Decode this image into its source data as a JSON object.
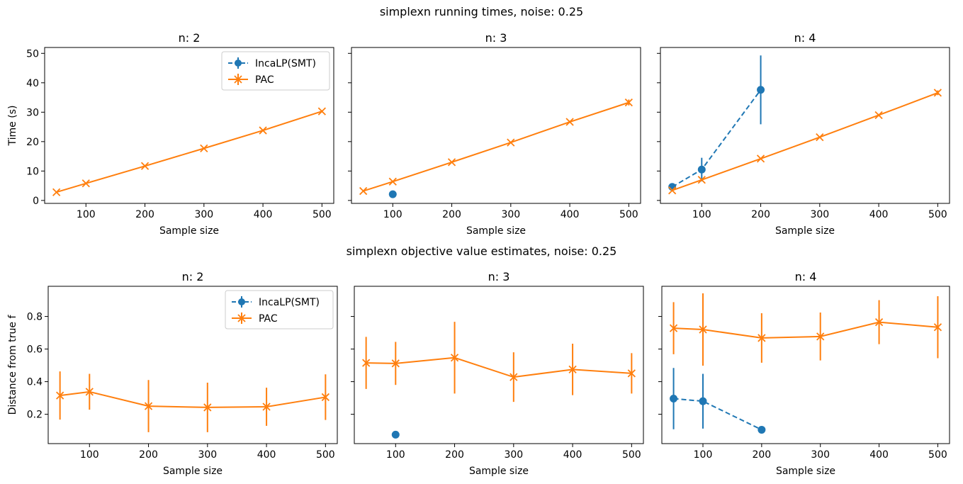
{
  "colors": {
    "incalp": "#1f77b4",
    "pac": "#ff7f0e",
    "axis": "#000000"
  },
  "rows": [
    {
      "suptitle": "simplexn running times, noise: 0.25",
      "ylabel": "Time (s)"
    },
    {
      "suptitle": "simplexn objective value estimates, noise: 0.25",
      "ylabel": "Distance from true f"
    }
  ],
  "legend": {
    "entries": [
      "IncaLP(SMT)",
      "PAC"
    ],
    "placement": "upper right",
    "panel_index": 0
  },
  "chart_data": [
    {
      "type": "line",
      "title": "n: 2",
      "xlabel": "Sample size",
      "ylabel": "Time (s)",
      "xlim": [
        30,
        520
      ],
      "ylim": [
        -1,
        52
      ],
      "xticks": [
        100,
        200,
        300,
        400,
        500
      ],
      "yticks": [
        0,
        10,
        20,
        30,
        40,
        50
      ],
      "series": [
        {
          "name": "IncaLP(SMT)",
          "style": "dashed-circle",
          "x": [],
          "y": [],
          "err": []
        },
        {
          "name": "PAC",
          "style": "solid-x",
          "x": [
            50,
            100,
            200,
            300,
            400,
            500
          ],
          "y": [
            2.8,
            5.8,
            11.7,
            17.7,
            23.8,
            30.3
          ],
          "err": [
            0.2,
            0.2,
            0.3,
            0.3,
            0.3,
            0.4
          ]
        }
      ]
    },
    {
      "type": "line",
      "title": "n: 3",
      "xlabel": "Sample size",
      "ylabel": "",
      "xlim": [
        30,
        520
      ],
      "ylim": [
        -1,
        52
      ],
      "xticks": [
        100,
        200,
        300,
        400,
        500
      ],
      "yticks": [
        0,
        10,
        20,
        30,
        40,
        50
      ],
      "series": [
        {
          "name": "IncaLP(SMT)",
          "style": "dashed-circle",
          "x": [
            100
          ],
          "y": [
            2.1
          ],
          "err": [
            0.2
          ]
        },
        {
          "name": "PAC",
          "style": "solid-x",
          "x": [
            50,
            100,
            200,
            300,
            400,
            500
          ],
          "y": [
            3.2,
            6.4,
            13.0,
            19.7,
            26.7,
            33.3
          ],
          "err": [
            0.2,
            0.2,
            0.3,
            0.3,
            0.4,
            1.0
          ]
        }
      ]
    },
    {
      "type": "line",
      "title": "n: 4",
      "xlabel": "Sample size",
      "ylabel": "",
      "xlim": [
        30,
        520
      ],
      "ylim": [
        -1,
        52
      ],
      "xticks": [
        100,
        200,
        300,
        400,
        500
      ],
      "yticks": [
        0,
        10,
        20,
        30,
        40,
        50
      ],
      "series": [
        {
          "name": "IncaLP(SMT)",
          "style": "dashed-circle",
          "x": [
            50,
            100,
            200
          ],
          "y": [
            4.6,
            10.5,
            37.6
          ],
          "err": [
            1.0,
            4.0,
            11.7
          ]
        },
        {
          "name": "PAC",
          "style": "solid-x",
          "x": [
            50,
            100,
            200,
            300,
            400,
            500
          ],
          "y": [
            3.4,
            7.0,
            14.2,
            21.5,
            29.0,
            36.6
          ],
          "err": [
            0.2,
            0.2,
            0.3,
            0.3,
            0.4,
            0.8
          ]
        }
      ]
    },
    {
      "type": "line",
      "title": "n: 2",
      "xlabel": "Sample size",
      "ylabel": "Distance from true f",
      "xlim": [
        30,
        520
      ],
      "ylim": [
        0.02,
        0.985
      ],
      "xticks": [
        100,
        200,
        300,
        400,
        500
      ],
      "yticks": [
        0.2,
        0.4,
        0.6,
        0.8
      ],
      "series": [
        {
          "name": "IncaLP(SMT)",
          "style": "dashed-circle",
          "x": [],
          "y": [],
          "err": []
        },
        {
          "name": "PAC",
          "style": "solid-x",
          "x": [
            50,
            100,
            200,
            300,
            400,
            500
          ],
          "y": [
            0.315,
            0.338,
            0.25,
            0.242,
            0.246,
            0.305
          ],
          "err": [
            0.148,
            0.11,
            0.16,
            0.152,
            0.117,
            0.14
          ]
        }
      ]
    },
    {
      "type": "line",
      "title": "n: 3",
      "xlabel": "Sample size",
      "ylabel": "",
      "xlim": [
        30,
        520
      ],
      "ylim": [
        0.02,
        0.985
      ],
      "xticks": [
        100,
        200,
        300,
        400,
        500
      ],
      "yticks": [
        0.2,
        0.4,
        0.6,
        0.8
      ],
      "series": [
        {
          "name": "IncaLP(SMT)",
          "style": "dashed-circle",
          "x": [
            100
          ],
          "y": [
            0.075
          ],
          "err": [
            0.0
          ]
        },
        {
          "name": "PAC",
          "style": "solid-x",
          "x": [
            50,
            100,
            200,
            300,
            400,
            500
          ],
          "y": [
            0.515,
            0.512,
            0.547,
            0.428,
            0.475,
            0.451
          ],
          "err": [
            0.16,
            0.132,
            0.22,
            0.152,
            0.158,
            0.124
          ]
        }
      ]
    },
    {
      "type": "line",
      "title": "n: 4",
      "xlabel": "Sample size",
      "ylabel": "",
      "xlim": [
        30,
        520
      ],
      "ylim": [
        0.02,
        0.985
      ],
      "xticks": [
        100,
        200,
        300,
        400,
        500
      ],
      "yticks": [
        0.2,
        0.4,
        0.6,
        0.8
      ],
      "series": [
        {
          "name": "IncaLP(SMT)",
          "style": "dashed-circle",
          "x": [
            50,
            100,
            200
          ],
          "y": [
            0.296,
            0.28,
            0.105
          ],
          "err": [
            0.188,
            0.168,
            0.02
          ]
        },
        {
          "name": "PAC",
          "style": "solid-x",
          "x": [
            50,
            100,
            200,
            300,
            400,
            500
          ],
          "y": [
            0.728,
            0.72,
            0.668,
            0.677,
            0.765,
            0.734
          ],
          "err": [
            0.16,
            0.222,
            0.152,
            0.147,
            0.135,
            0.19
          ]
        }
      ]
    }
  ]
}
